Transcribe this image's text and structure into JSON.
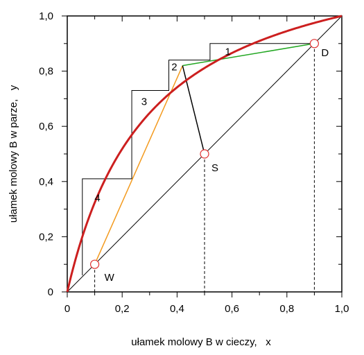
{
  "chart_data": {
    "type": "line",
    "xlabel": "ułamek molowy B w cieczy,   x",
    "ylabel": "ułamek molowy B w parze,   y",
    "xlim": [
      0,
      1
    ],
    "ylim": [
      0,
      1
    ],
    "x_ticks": [
      "0",
      "0,2",
      "0,4",
      "0,6",
      "0,8",
      "1,0"
    ],
    "y_ticks": [
      "0",
      "0,2",
      "0,4",
      "0,6",
      "0,8",
      "1,0"
    ],
    "tick_values": [
      0,
      0.2,
      0.4,
      0.6,
      0.8,
      1.0
    ],
    "minor_tick_values": [
      0.1,
      0.3,
      0.5,
      0.7,
      0.9
    ],
    "grid": false,
    "colors": {
      "equilibrium": "#cc1f1f",
      "rectifying": "#22a722",
      "stripping": "#f39a1e",
      "q_line": "#000000",
      "diagonal": "#000000",
      "steps": "#000000",
      "markers": "#e03030"
    },
    "equilibrium_curve": {
      "relative_volatility": 4.3,
      "x_range": [
        0,
        1
      ]
    },
    "diagonal": {
      "x": [
        0,
        1
      ],
      "y": [
        0,
        1
      ]
    },
    "rectifying_line": {
      "x": [
        0.42,
        0.9
      ],
      "y": [
        0.82,
        0.9
      ]
    },
    "stripping_line": {
      "x": [
        0.1,
        0.42
      ],
      "y": [
        0.1,
        0.82
      ]
    },
    "q_line": {
      "x": [
        0.42,
        0.5
      ],
      "y": [
        0.82,
        0.5
      ]
    },
    "steps": {
      "x": [
        0.9,
        0.52,
        0.52,
        0.37,
        0.37,
        0.235,
        0.235,
        0.055,
        0.055
      ],
      "y": [
        0.9,
        0.9,
        0.84,
        0.84,
        0.73,
        0.73,
        0.41,
        0.41,
        0.06
      ]
    },
    "points": [
      {
        "label": "D",
        "x": 0.9,
        "y": 0.9
      },
      {
        "label": "S",
        "x": 0.5,
        "y": 0.5
      },
      {
        "label": "W",
        "x": 0.1,
        "y": 0.1
      }
    ],
    "stage_labels": [
      {
        "label": "1",
        "x": 0.585,
        "y": 0.87
      },
      {
        "label": "2",
        "x": 0.39,
        "y": 0.815
      },
      {
        "label": "3",
        "x": 0.28,
        "y": 0.69
      },
      {
        "label": "4",
        "x": 0.11,
        "y": 0.34
      }
    ]
  }
}
